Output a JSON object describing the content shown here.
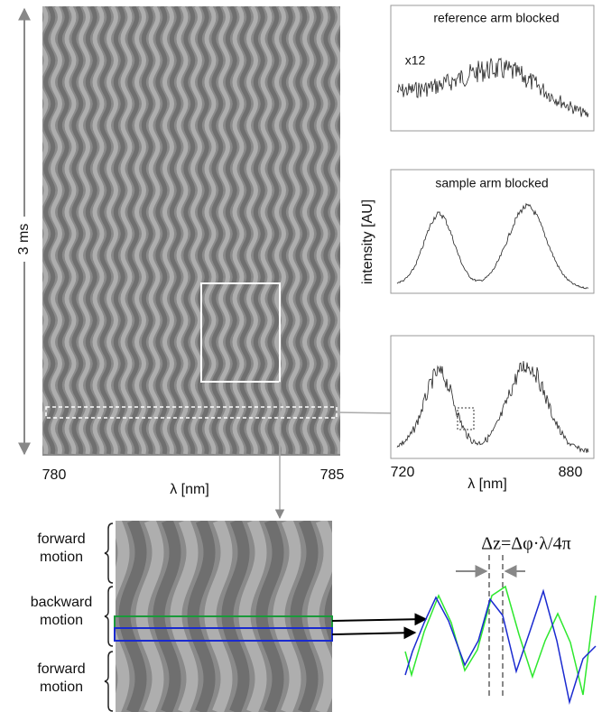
{
  "left_panel": {
    "time_label": "3 ms",
    "x_start": "780",
    "x_end": "785",
    "x_label": "λ [nm]"
  },
  "right_panels": {
    "y_label": "intensity [AU]",
    "plots": [
      {
        "title": "reference arm blocked",
        "note": "x12"
      },
      {
        "title": "sample arm blocked"
      },
      {}
    ],
    "x_start": "720",
    "x_end": "880",
    "x_label": "λ [nm]"
  },
  "zoom": {
    "labels": [
      "forward motion",
      "backward motion",
      "forward motion"
    ],
    "formula": "Δz=Δφ·λ/4π"
  }
}
